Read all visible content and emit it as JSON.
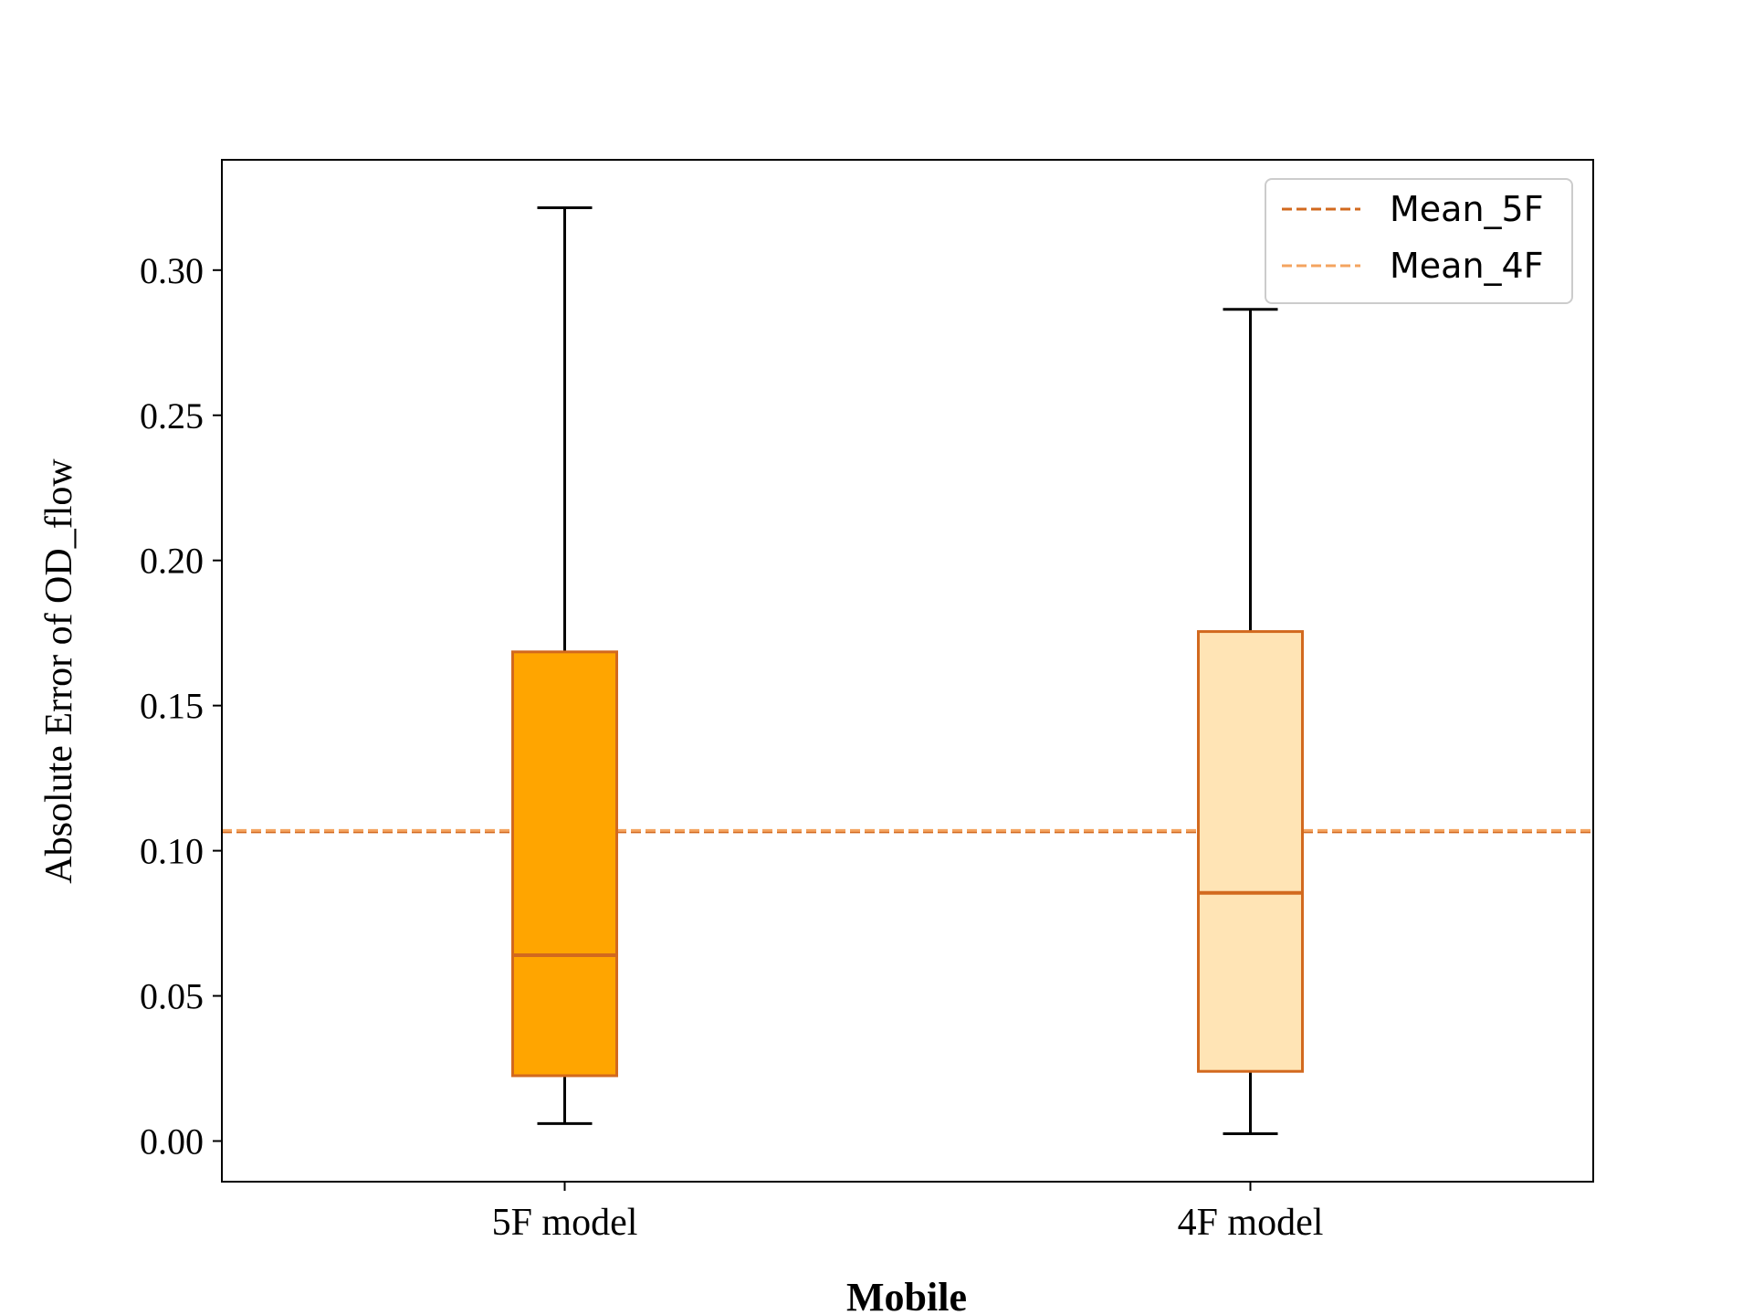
{
  "chart_data": {
    "type": "box",
    "title": "",
    "xlabel": "Mobile",
    "ylabel": "Absolute Error of OD_flow",
    "categories": [
      "5F model",
      "4F model"
    ],
    "ylim": [
      -0.014,
      0.338
    ],
    "yticks": [
      0.0,
      0.05,
      0.1,
      0.15,
      0.2,
      0.25,
      0.3
    ],
    "ytick_labels": [
      "0.00",
      "0.05",
      "0.10",
      "0.15",
      "0.20",
      "0.25",
      "0.30"
    ],
    "boxes": [
      {
        "category": "5F model",
        "whisker_low": 0.006,
        "q1": 0.0225,
        "median": 0.064,
        "q3": 0.1685,
        "whisker_high": 0.3215,
        "fill": "#FFA500",
        "edge": "#D2691E"
      },
      {
        "category": "4F model",
        "whisker_low": 0.0025,
        "q1": 0.024,
        "median": 0.0855,
        "q3": 0.1755,
        "whisker_high": 0.2865,
        "fill": "#FFE4B5",
        "edge": "#D2691E"
      }
    ],
    "mean_lines": [
      {
        "name": "Mean_5F",
        "value": 0.1065,
        "color": "#D2691E",
        "style": "dashed"
      },
      {
        "name": "Mean_4F",
        "value": 0.107,
        "color": "#F4A460",
        "style": "dashed"
      }
    ],
    "legend": {
      "position": "top-right",
      "entries": [
        "Mean_5F",
        "Mean_4F"
      ]
    },
    "grid": false
  }
}
